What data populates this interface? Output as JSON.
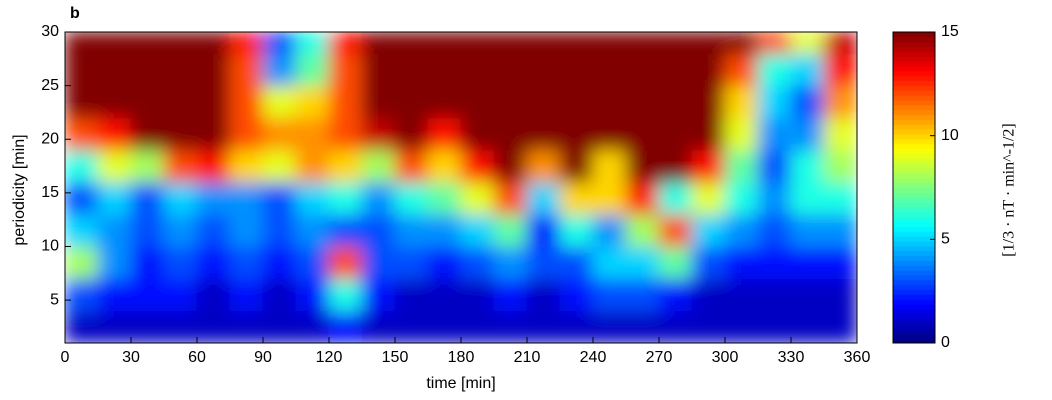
{
  "chart_data": {
    "type": "heatmap",
    "panel_label": "b",
    "xlabel": "time [min]",
    "ylabel": "periodicity [min]",
    "colorbar_label": "[1/3 · nT · min^-1/2]",
    "colormap": "jet",
    "x": [
      7.5,
      22.5,
      37.5,
      52.5,
      67.5,
      82.5,
      97.5,
      112.5,
      127.5,
      142.5,
      157.5,
      172.5,
      187.5,
      202.5,
      217.5,
      232.5,
      247.5,
      262.5,
      277.5,
      292.5,
      307.5,
      322.5,
      337.5,
      352.5
    ],
    "y": [
      2.5,
      5.5,
      8.5,
      11.5,
      14.5,
      17.5,
      20.5,
      23.5,
      26.5,
      29.5
    ],
    "z": [
      [
        1,
        1,
        1,
        1,
        1,
        1,
        1,
        1,
        2,
        1,
        1,
        1,
        1,
        1,
        1,
        1,
        1,
        1,
        1,
        1,
        1,
        1,
        1,
        1
      ],
      [
        3,
        2,
        2,
        2,
        1,
        2,
        1,
        2,
        6,
        2,
        1,
        1,
        1,
        2,
        1,
        2,
        3,
        3,
        2,
        1,
        1,
        1,
        1,
        1
      ],
      [
        8,
        4,
        2,
        3,
        2,
        3,
        2,
        3,
        12,
        3,
        3,
        2,
        3,
        4,
        3,
        3,
        5,
        5,
        7,
        3,
        2,
        2,
        2,
        2
      ],
      [
        5,
        4,
        3,
        4,
        3,
        4,
        3,
        4,
        3,
        3,
        4,
        4,
        5,
        7,
        2,
        6,
        4,
        8,
        12,
        5,
        4,
        3,
        4,
        4
      ],
      [
        3,
        5,
        3,
        5,
        4,
        4,
        3,
        5,
        6,
        4,
        6,
        7,
        9,
        12,
        5,
        10,
        10,
        13,
        6,
        9,
        6,
        4,
        6,
        6
      ],
      [
        6,
        9,
        8,
        12,
        13,
        10,
        9,
        11,
        10,
        8,
        12,
        10,
        13,
        15,
        11,
        15,
        10,
        15,
        15,
        13,
        7,
        3,
        6,
        8
      ],
      [
        12,
        13,
        15,
        15,
        15,
        12,
        11,
        11,
        12,
        14,
        15,
        13,
        15,
        15,
        15,
        15,
        15,
        15,
        15,
        15,
        9,
        4,
        4,
        9
      ],
      [
        15,
        15,
        15,
        15,
        15,
        12,
        9,
        10,
        12,
        15,
        15,
        15,
        15,
        15,
        15,
        15,
        15,
        15,
        15,
        15,
        10,
        5,
        3,
        11
      ],
      [
        15,
        15,
        15,
        15,
        15,
        12,
        4,
        7,
        12,
        15,
        15,
        15,
        15,
        15,
        15,
        15,
        15,
        15,
        15,
        15,
        12,
        6,
        5,
        13
      ],
      [
        15,
        15,
        15,
        15,
        15,
        13,
        3,
        6,
        13,
        15,
        15,
        15,
        15,
        15,
        15,
        15,
        15,
        15,
        15,
        15,
        15,
        12,
        9,
        14
      ]
    ],
    "xlim": [
      0,
      360
    ],
    "xticks": [
      0,
      30,
      60,
      90,
      120,
      150,
      180,
      210,
      240,
      270,
      300,
      330,
      360
    ],
    "ylim": [
      1,
      30
    ],
    "yticks": [
      5,
      10,
      15,
      20,
      25,
      30
    ],
    "clim": [
      0,
      15
    ],
    "cticks": [
      0,
      5,
      10,
      15
    ]
  }
}
